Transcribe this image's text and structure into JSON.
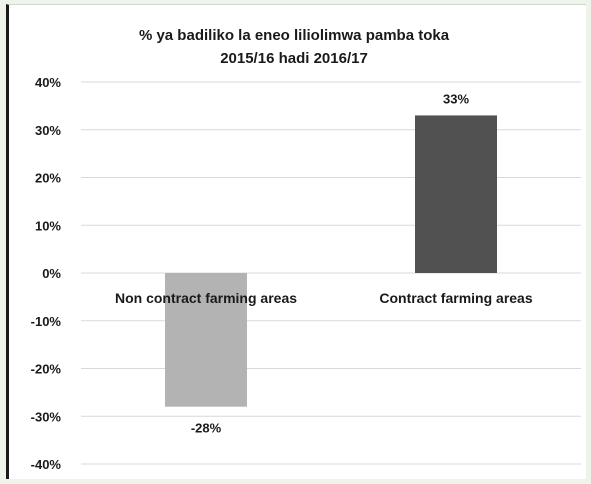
{
  "chart_data": {
    "type": "bar",
    "title_line1": "% ya badiliko la eneo liliolimwa pamba toka",
    "title_line2": "2015/16 hadi 2016/17",
    "xlabel": "",
    "ylabel": "",
    "categories": [
      "Non contract farming areas",
      "Contract farming areas"
    ],
    "values": [
      -28,
      33
    ],
    "value_labels": [
      "-28%",
      "33%"
    ],
    "bar_colors": [
      "#b3b3b3",
      "#515151"
    ],
    "ylim": [
      -40,
      40
    ],
    "yticks": [
      40,
      30,
      20,
      10,
      0,
      -10,
      -20,
      -30,
      -40
    ],
    "ytick_labels": [
      "40%",
      "30%",
      "20%",
      "10%",
      "0%",
      "-10%",
      "-20%",
      "-30%",
      "-40%"
    ],
    "grid": true,
    "legend": "none"
  },
  "colors": {
    "page_background": "#eef4ea",
    "plot_background": "#ffffff",
    "gridline": "#d9d9d9",
    "text": "#1a1a1a"
  }
}
